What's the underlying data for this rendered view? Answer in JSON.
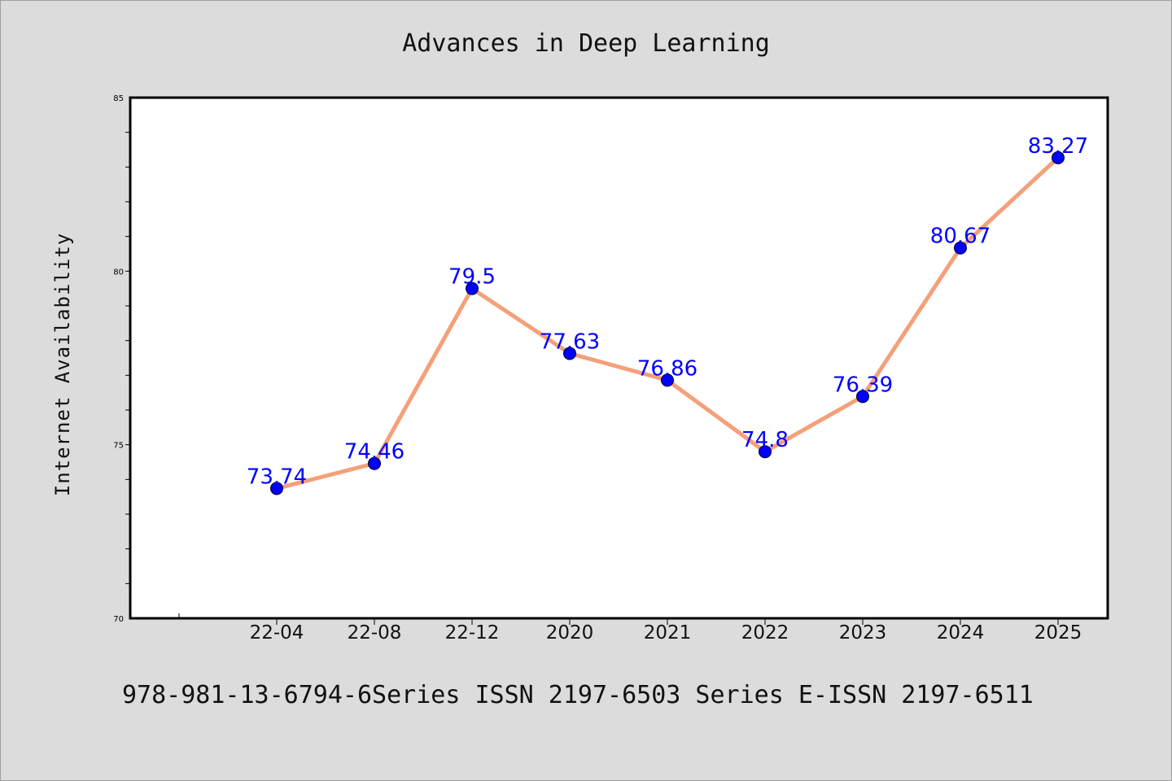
{
  "chart_data": {
    "type": "line",
    "title": "Advances in Deep Learning",
    "xlabel": "",
    "ylabel": "Internet Availability",
    "categories": [
      "22-04",
      "22-08",
      "22-12",
      "2020",
      "2021",
      "2022",
      "2023",
      "2024",
      "2025"
    ],
    "values": [
      73.74,
      74.46,
      79.5,
      77.63,
      76.86,
      74.8,
      76.39,
      80.67,
      83.27
    ],
    "data_labels": [
      "73.74",
      "74.46",
      "79.5",
      "77.63",
      "76.86",
      "74.8",
      "76.39",
      "80.67",
      "83.27"
    ],
    "ylim": [
      70,
      85
    ],
    "y_ticks": [
      "70",
      "75",
      "80",
      "85"
    ],
    "grid": false,
    "legend": "none",
    "line_color": "#f4a07a",
    "marker_color": "#0000ff"
  },
  "footer": {
    "text": "978-981-13-6794-6Series ISSN 2197-6503 Series E-ISSN 2197-6511"
  }
}
